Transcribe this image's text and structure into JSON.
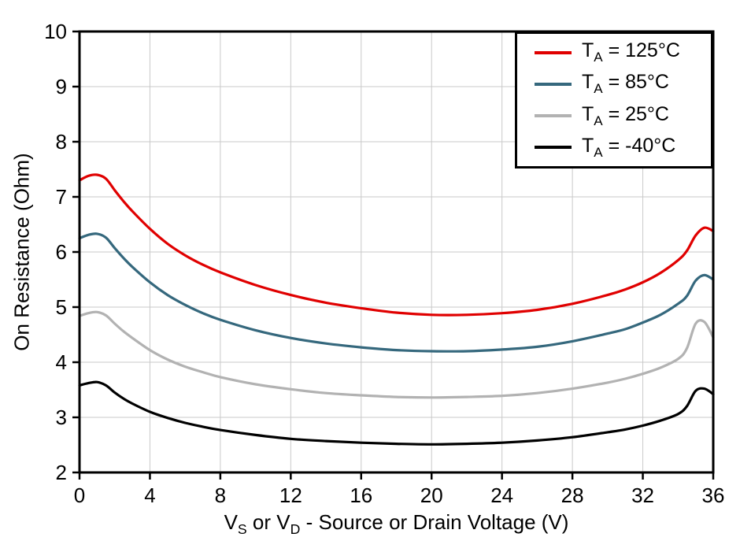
{
  "chart_data": {
    "type": "line",
    "title": "",
    "ylabel": "On Resistance (Ohm)",
    "xlabel": "VS or VD - Source or Drain Voltage (V)",
    "xlabel_parts": {
      "p1": "V",
      "s1": "S",
      "p2": " or V",
      "s2": "D",
      "p3": " - Source or Drain Voltage (V)"
    },
    "xlim": [
      0,
      36
    ],
    "ylim": [
      2,
      10
    ],
    "xticks": [
      0,
      4,
      8,
      12,
      16,
      20,
      24,
      28,
      32,
      36
    ],
    "yticks": [
      2,
      3,
      4,
      5,
      6,
      7,
      8,
      9,
      10
    ],
    "grid": true,
    "legend_position": "top-right",
    "style": {
      "grid_color": "#c9c9c9",
      "axis_color": "#000000",
      "background": "#ffffff"
    },
    "series": [
      {
        "id": "125C",
        "name": "TA = 125°C",
        "legend": {
          "pre": "T",
          "sub": "A",
          "post": " = 125°C"
        },
        "color": "#e00000",
        "points": [
          [
            0,
            7.3
          ],
          [
            0.5,
            7.38
          ],
          [
            1,
            7.4
          ],
          [
            1.5,
            7.33
          ],
          [
            2,
            7.12
          ],
          [
            2.5,
            6.92
          ],
          [
            3,
            6.74
          ],
          [
            4,
            6.42
          ],
          [
            5,
            6.15
          ],
          [
            6,
            5.94
          ],
          [
            7,
            5.77
          ],
          [
            8,
            5.63
          ],
          [
            10,
            5.4
          ],
          [
            12,
            5.22
          ],
          [
            14,
            5.08
          ],
          [
            16,
            4.98
          ],
          [
            18,
            4.9
          ],
          [
            20,
            4.86
          ],
          [
            22,
            4.86
          ],
          [
            24,
            4.89
          ],
          [
            26,
            4.95
          ],
          [
            28,
            5.06
          ],
          [
            30,
            5.22
          ],
          [
            31,
            5.32
          ],
          [
            32,
            5.45
          ],
          [
            33,
            5.62
          ],
          [
            34,
            5.85
          ],
          [
            34.5,
            6.02
          ],
          [
            35,
            6.3
          ],
          [
            35.5,
            6.44
          ],
          [
            36,
            6.38
          ]
        ]
      },
      {
        "id": "85C",
        "name": "TA = 85°C",
        "legend": {
          "pre": "T",
          "sub": "A",
          "post": " = 85°C"
        },
        "color": "#35687d",
        "points": [
          [
            0,
            6.25
          ],
          [
            0.5,
            6.31
          ],
          [
            1,
            6.33
          ],
          [
            1.5,
            6.26
          ],
          [
            2,
            6.07
          ],
          [
            2.5,
            5.89
          ],
          [
            3,
            5.73
          ],
          [
            4,
            5.45
          ],
          [
            5,
            5.22
          ],
          [
            6,
            5.04
          ],
          [
            7,
            4.89
          ],
          [
            8,
            4.77
          ],
          [
            10,
            4.58
          ],
          [
            12,
            4.44
          ],
          [
            14,
            4.34
          ],
          [
            16,
            4.27
          ],
          [
            18,
            4.22
          ],
          [
            20,
            4.2
          ],
          [
            22,
            4.2
          ],
          [
            24,
            4.23
          ],
          [
            26,
            4.28
          ],
          [
            28,
            4.38
          ],
          [
            30,
            4.52
          ],
          [
            31,
            4.6
          ],
          [
            32,
            4.72
          ],
          [
            33,
            4.86
          ],
          [
            34,
            5.06
          ],
          [
            34.5,
            5.2
          ],
          [
            35,
            5.48
          ],
          [
            35.5,
            5.58
          ],
          [
            36,
            5.5
          ]
        ]
      },
      {
        "id": "25C",
        "name": "TA = 25°C",
        "legend": {
          "pre": "T",
          "sub": "A",
          "post": " = 25°C"
        },
        "color": "#b2b2b2",
        "points": [
          [
            0,
            4.84
          ],
          [
            0.5,
            4.89
          ],
          [
            1,
            4.91
          ],
          [
            1.5,
            4.85
          ],
          [
            2,
            4.7
          ],
          [
            2.5,
            4.56
          ],
          [
            3,
            4.44
          ],
          [
            4,
            4.22
          ],
          [
            5,
            4.05
          ],
          [
            6,
            3.92
          ],
          [
            7,
            3.82
          ],
          [
            8,
            3.73
          ],
          [
            10,
            3.6
          ],
          [
            12,
            3.51
          ],
          [
            14,
            3.44
          ],
          [
            16,
            3.4
          ],
          [
            18,
            3.37
          ],
          [
            20,
            3.36
          ],
          [
            22,
            3.37
          ],
          [
            24,
            3.39
          ],
          [
            26,
            3.44
          ],
          [
            28,
            3.52
          ],
          [
            30,
            3.63
          ],
          [
            31,
            3.7
          ],
          [
            32,
            3.79
          ],
          [
            33,
            3.9
          ],
          [
            34,
            4.06
          ],
          [
            34.5,
            4.25
          ],
          [
            35,
            4.7
          ],
          [
            35.5,
            4.73
          ],
          [
            36,
            4.45
          ]
        ]
      },
      {
        "id": "minus40C",
        "name": "TA = -40°C",
        "legend": {
          "pre": "T",
          "sub": "A",
          "post": " = -40°C"
        },
        "color": "#000000",
        "points": [
          [
            0,
            3.58
          ],
          [
            0.5,
            3.62
          ],
          [
            1,
            3.64
          ],
          [
            1.5,
            3.58
          ],
          [
            2,
            3.45
          ],
          [
            2.5,
            3.34
          ],
          [
            3,
            3.25
          ],
          [
            4,
            3.1
          ],
          [
            5,
            2.99
          ],
          [
            6,
            2.9
          ],
          [
            7,
            2.83
          ],
          [
            8,
            2.77
          ],
          [
            10,
            2.68
          ],
          [
            12,
            2.61
          ],
          [
            14,
            2.57
          ],
          [
            16,
            2.54
          ],
          [
            18,
            2.52
          ],
          [
            20,
            2.51
          ],
          [
            22,
            2.52
          ],
          [
            24,
            2.54
          ],
          [
            26,
            2.58
          ],
          [
            28,
            2.64
          ],
          [
            30,
            2.73
          ],
          [
            31,
            2.78
          ],
          [
            32,
            2.85
          ],
          [
            33,
            2.94
          ],
          [
            34,
            3.06
          ],
          [
            34.5,
            3.2
          ],
          [
            35,
            3.48
          ],
          [
            35.5,
            3.52
          ],
          [
            36,
            3.42
          ]
        ]
      }
    ]
  }
}
